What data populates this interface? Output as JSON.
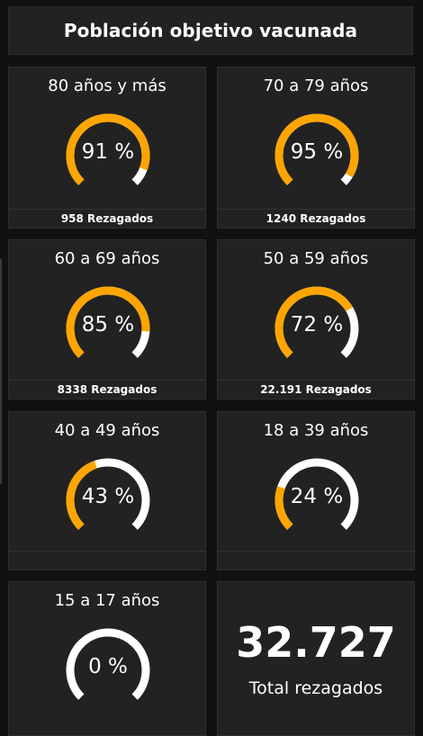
{
  "header": {
    "title": "Población objetivo vacunada"
  },
  "colors": {
    "progress": "#FFA500",
    "track": "#FFFFFF",
    "card_bg": "#222222",
    "page_bg": "#111111"
  },
  "cards": [
    {
      "title": "80 años y más",
      "percent": 91,
      "value_text": "91 %",
      "footer": "958 Rezagados"
    },
    {
      "title": "70 a 79 años",
      "percent": 95,
      "value_text": "95 %",
      "footer": "1240 Rezagados"
    },
    {
      "title": "60 a 69 años",
      "percent": 85,
      "value_text": "85 %",
      "footer": "8338 Rezagados"
    },
    {
      "title": "50 a 59 años",
      "percent": 72,
      "value_text": "72 %",
      "footer": "22.191 Rezagados"
    },
    {
      "title": "40 a 49 años",
      "percent": 43,
      "value_text": "43 %",
      "footer": ""
    },
    {
      "title": "18 a 39 años",
      "percent": 24,
      "value_text": "24 %",
      "footer": ""
    },
    {
      "title": "15 a 17 años",
      "percent": 0,
      "value_text": "0 %",
      "footer": ""
    }
  ],
  "total": {
    "value": "32.727",
    "label": "Total rezagados"
  }
}
